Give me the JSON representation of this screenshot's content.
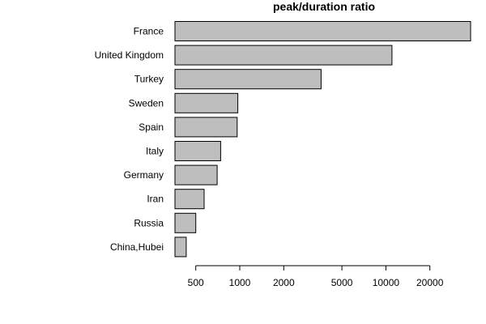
{
  "chart_data": {
    "type": "bar",
    "orientation": "horizontal",
    "title": "peak/duration ratio",
    "xlabel": "",
    "ylabel": "",
    "x_scale": "log",
    "xlim": [
      360,
      40000
    ],
    "x_ticks": [
      500,
      1000,
      2000,
      5000,
      10000,
      20000
    ],
    "x_tick_labels": [
      "500",
      "1000",
      "2000",
      "5000",
      "10000",
      "20000"
    ],
    "categories": [
      "France",
      "United Kingdom",
      "Turkey",
      "Sweden",
      "Spain",
      "Italy",
      "Germany",
      "Iran",
      "Russia",
      "China,Hubei"
    ],
    "values": [
      38000,
      11000,
      3600,
      970,
      960,
      740,
      700,
      570,
      500,
      430
    ],
    "colors": {
      "bar_fill": "#bebebe",
      "bar_stroke": "#000000",
      "axis": "#000000"
    }
  }
}
